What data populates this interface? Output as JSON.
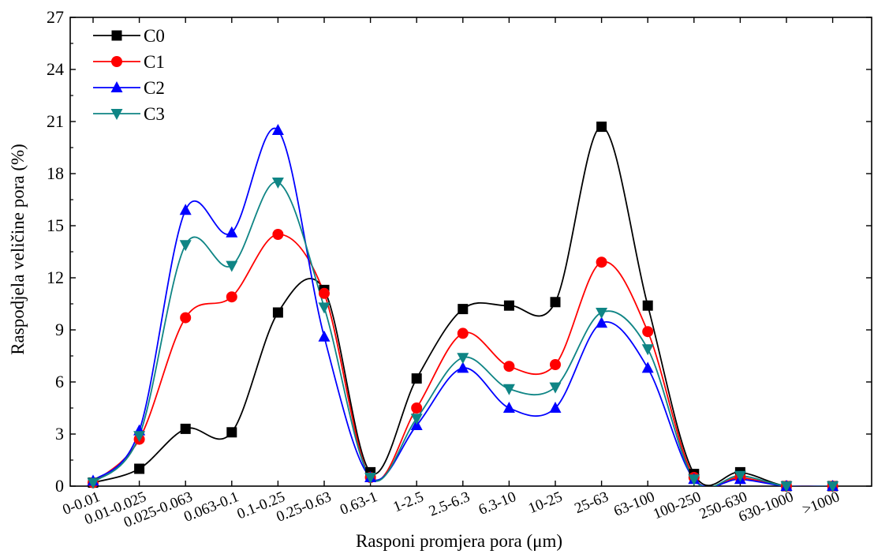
{
  "chart_data": {
    "type": "line",
    "xlabel": "Rasponi promjera pora (μm)",
    "ylabel": "Raspodjela veličine pora (%)",
    "ylim": [
      0,
      27
    ],
    "yticks": [
      0,
      3,
      6,
      9,
      12,
      15,
      18,
      21,
      24,
      27
    ],
    "grid": false,
    "legend_position": "top-left",
    "smooth": true,
    "categories": [
      "0-0.01",
      "0.01-0.025",
      "0.025-0.063",
      "0.063-0.1",
      "0.1-0.25",
      "0.25-0.63",
      "0.63-1",
      "1-2.5",
      "2.5-6.3",
      "6.3-10",
      "10-25",
      "25-63",
      "63-100",
      "100-250",
      "250-630",
      "630-1000",
      ">1000"
    ],
    "series": [
      {
        "name": "C0",
        "color": "#000000",
        "marker": "square",
        "values": [
          0.2,
          1.0,
          3.3,
          3.1,
          10.0,
          11.3,
          0.8,
          6.2,
          10.2,
          10.4,
          10.6,
          20.7,
          10.4,
          0.7,
          0.8,
          0.0,
          0.0
        ]
      },
      {
        "name": "C1",
        "color": "#ff0000",
        "marker": "circle",
        "values": [
          0.2,
          2.7,
          9.7,
          10.9,
          14.5,
          11.1,
          0.5,
          4.5,
          8.8,
          6.9,
          7.0,
          12.9,
          8.9,
          0.5,
          0.5,
          0.0,
          0.0
        ]
      },
      {
        "name": "C2",
        "color": "#0000ff",
        "marker": "triangle-up",
        "values": [
          0.3,
          3.2,
          15.9,
          14.6,
          20.5,
          8.6,
          0.5,
          3.5,
          6.8,
          4.5,
          4.5,
          9.4,
          6.8,
          0.4,
          0.4,
          0.0,
          0.0
        ]
      },
      {
        "name": "C3",
        "color": "#0f8585",
        "marker": "triangle-down",
        "values": [
          0.2,
          2.9,
          13.9,
          12.7,
          17.5,
          10.3,
          0.5,
          3.9,
          7.4,
          5.6,
          5.7,
          10.0,
          7.9,
          0.4,
          0.6,
          0.0,
          0.0
        ]
      }
    ]
  }
}
